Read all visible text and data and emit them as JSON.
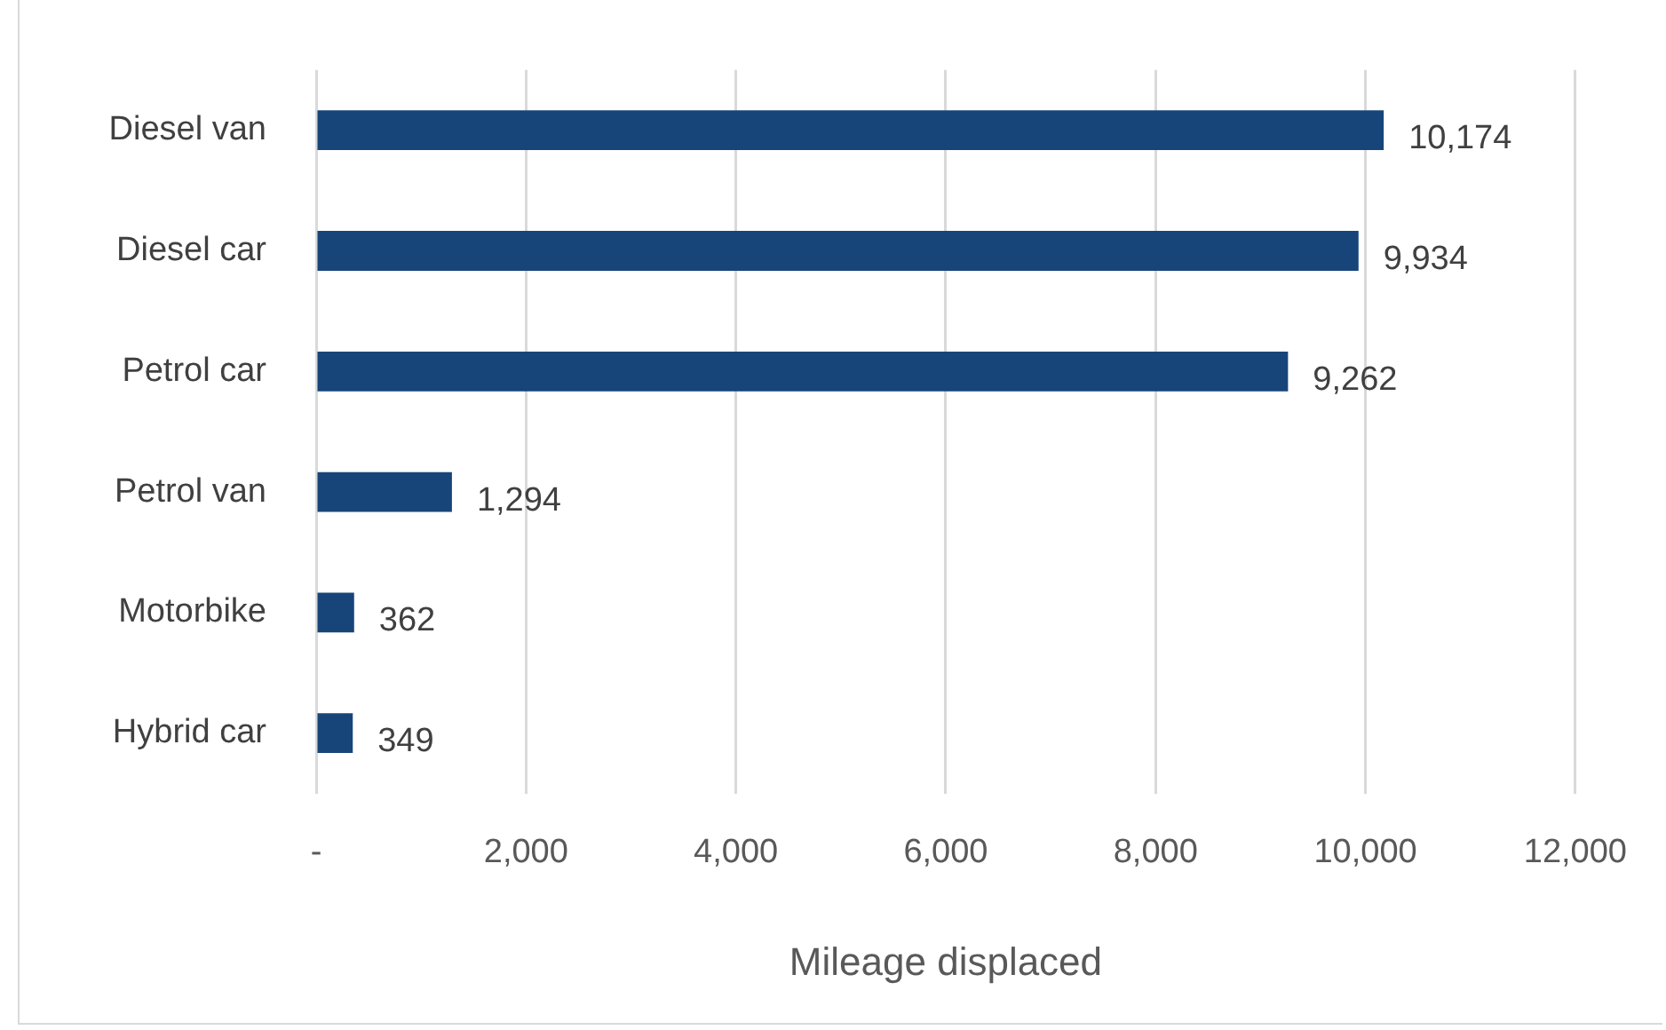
{
  "chart_data": {
    "type": "bar",
    "orientation": "horizontal",
    "xlabel": "Mileage displaced",
    "categories": [
      "Diesel van",
      "Diesel car",
      "Petrol car",
      "Petrol van",
      "Motorbike",
      "Hybrid car"
    ],
    "values": [
      10174,
      9934,
      9262,
      1294,
      362,
      349
    ],
    "value_labels": [
      "10,174",
      "9,934",
      "9,262",
      "1,294",
      "362",
      "349"
    ],
    "color": "#17457a",
    "xlim": [
      0,
      12000
    ],
    "xticks": [
      {
        "value": 0,
        "label": "-"
      },
      {
        "value": 2000,
        "label": "2,000"
      },
      {
        "value": 4000,
        "label": "4,000"
      },
      {
        "value": 6000,
        "label": "6,000"
      },
      {
        "value": 8000,
        "label": "8,000"
      },
      {
        "value": 10000,
        "label": "10,000"
      },
      {
        "value": 12000,
        "label": "12,000"
      }
    ],
    "grid": "x",
    "legend": false
  }
}
